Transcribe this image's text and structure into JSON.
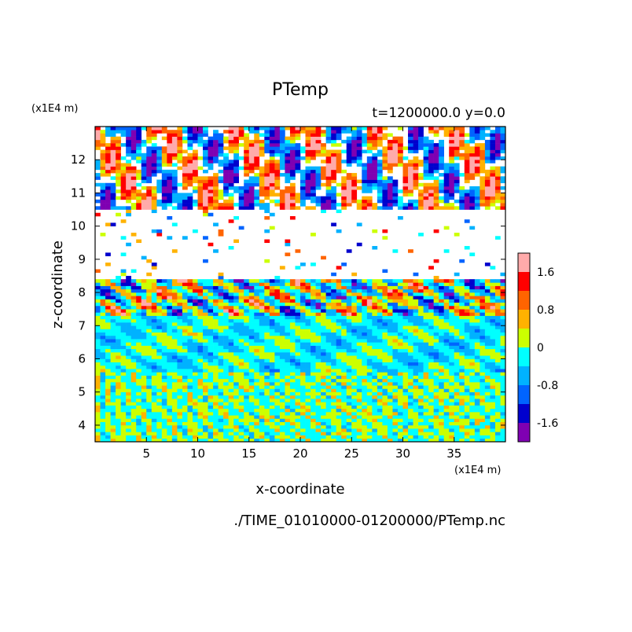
{
  "chart_data": {
    "type": "heatmap",
    "title": "PTemp",
    "subtitle": "t=1200000.0 y=0.0",
    "xlabel": "x-coordinate",
    "ylabel": "z-coordinate",
    "x_unit": "(x1E4 m)",
    "y_unit": "(x1E4 m)",
    "footer": "./TIME_01010000-01200000/PTemp.nc",
    "xlim": [
      0,
      40
    ],
    "ylim": [
      3.5,
      13
    ],
    "x_ticks": [
      5,
      10,
      15,
      20,
      25,
      30,
      35
    ],
    "y_ticks": [
      4,
      5,
      6,
      7,
      8,
      9,
      10,
      11,
      12
    ],
    "colorbar": {
      "levels": [
        -2.0,
        -1.6,
        -1.2,
        -0.8,
        -0.4,
        0,
        0.4,
        0.8,
        1.2,
        1.6,
        2.0
      ],
      "colors": [
        "#7f00b2",
        "#0000cd",
        "#0064ff",
        "#00b2ff",
        "#00ffff",
        "#ccff00",
        "#ffb200",
        "#ff6400",
        "#ff0000",
        "#ffaaaa"
      ],
      "tick_labels": [
        {
          "value": 1.6,
          "label": "1.6"
        },
        {
          "value": 0.8,
          "label": "0.8"
        },
        {
          "value": 0,
          "label": "0"
        },
        {
          "value": -0.8,
          "label": "-0.8"
        },
        {
          "value": -1.6,
          "label": "-1.6"
        }
      ]
    },
    "regions": [
      {
        "z": [
          3.5,
          5.6
        ],
        "description": "yellow/cyan alternating cells, PTemp about -0.4 to 0.4"
      },
      {
        "z": [
          5.6,
          7.3
        ],
        "description": "cyan/yellow/green wavy layers, PTemp about -0.8 to 0.4"
      },
      {
        "z": [
          7.3,
          8.4
        ],
        "description": "mixed blue/red/orange bands, PTemp about -1.6 to 1.6"
      },
      {
        "z": [
          8.4,
          10.5
        ],
        "description": "mostly white, sparse thin contours"
      },
      {
        "z": [
          10.5,
          13
        ],
        "description": "turbulent blue/red/orange patches with white, PTemp about -2 to 2"
      }
    ]
  }
}
